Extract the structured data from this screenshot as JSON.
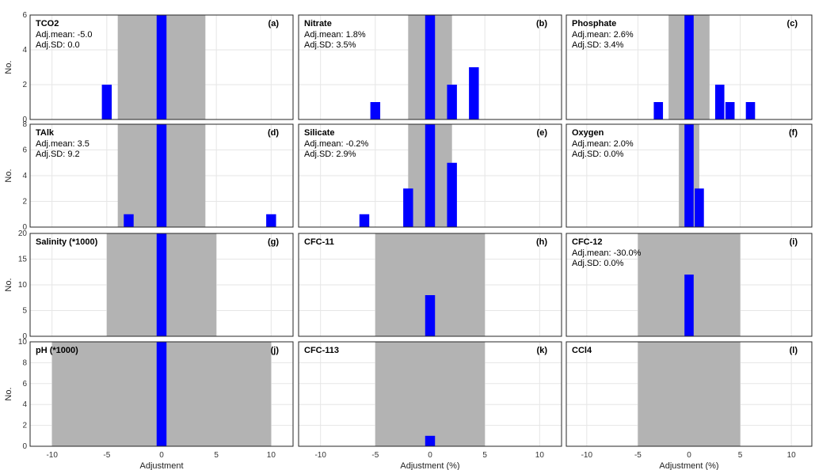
{
  "colors": {
    "bar": "#0000ff",
    "band": "#b3b3b3",
    "grid": "#e6e6e6",
    "frame": "#262626"
  },
  "chart_data": [
    {
      "type": "bar",
      "label": "(a)",
      "title": "TCO2",
      "stats": [
        "Adj.mean: -5.0",
        "Adj.SD: 0.0"
      ],
      "ylabel": "No.",
      "xlabel": "",
      "xlim": [
        -12,
        12
      ],
      "ylim": [
        0,
        6
      ],
      "yticks": [
        0,
        2,
        4,
        6
      ],
      "xticks": [],
      "band": [
        -4,
        4
      ],
      "bar_x": [
        -5,
        0
      ],
      "bar_y": [
        2,
        6
      ]
    },
    {
      "type": "bar",
      "label": "(b)",
      "title": "Nitrate",
      "stats": [
        "Adj.mean: 1.8%",
        "Adj.SD: 3.5%"
      ],
      "ylabel": "",
      "xlabel": "",
      "xlim": [
        -12,
        12
      ],
      "ylim": [
        0,
        6
      ],
      "yticks": [],
      "xticks": [],
      "band": [
        -2,
        2
      ],
      "bar_x": [
        -5,
        0,
        2,
        4
      ],
      "bar_y": [
        1,
        6,
        2,
        3
      ]
    },
    {
      "type": "bar",
      "label": "(c)",
      "title": "Phosphate",
      "stats": [
        "Adj.mean: 2.6%",
        "Adj.SD: 3.4%"
      ],
      "ylabel": "",
      "xlabel": "",
      "xlim": [
        -12,
        12
      ],
      "ylim": [
        0,
        6
      ],
      "yticks": [],
      "xticks": [],
      "band": [
        -2,
        2
      ],
      "bar_x": [
        -3,
        0,
        3,
        4,
        6
      ],
      "bar_y": [
        1,
        6,
        2,
        1,
        1
      ]
    },
    {
      "type": "bar",
      "label": "(d)",
      "title": "TAlk",
      "stats": [
        "Adj.mean: 3.5",
        "Adj.SD: 9.2"
      ],
      "ylabel": "No.",
      "xlabel": "",
      "xlim": [
        -12,
        12
      ],
      "ylim": [
        0,
        8
      ],
      "yticks": [
        0,
        2,
        4,
        6,
        8
      ],
      "xticks": [],
      "band": [
        -4,
        4
      ],
      "bar_x": [
        -3,
        0,
        10
      ],
      "bar_y": [
        1,
        8,
        1
      ]
    },
    {
      "type": "bar",
      "label": "(e)",
      "title": "Silicate",
      "stats": [
        "Adj.mean: -0.2%",
        "Adj.SD: 2.9%"
      ],
      "ylabel": "",
      "xlabel": "",
      "xlim": [
        -12,
        12
      ],
      "ylim": [
        0,
        8
      ],
      "yticks": [],
      "xticks": [],
      "band": [
        -2,
        2
      ],
      "bar_x": [
        -6,
        -2,
        0,
        2
      ],
      "bar_y": [
        1,
        3,
        8,
        5
      ]
    },
    {
      "type": "bar",
      "label": "(f)",
      "title": "Oxygen",
      "stats": [
        "Adj.mean: 2.0%",
        "Adj.SD: 0.0%"
      ],
      "ylabel": "",
      "xlabel": "",
      "xlim": [
        -12,
        12
      ],
      "ylim": [
        0,
        8
      ],
      "yticks": [],
      "xticks": [],
      "band": [
        -1,
        1
      ],
      "bar_x": [
        0,
        1
      ],
      "bar_y": [
        8,
        3
      ]
    },
    {
      "type": "bar",
      "label": "(g)",
      "title": "Salinity (*1000)",
      "stats": [],
      "ylabel": "No.",
      "xlabel": "",
      "xlim": [
        -12,
        12
      ],
      "ylim": [
        0,
        20
      ],
      "yticks": [
        0,
        5,
        10,
        15,
        20
      ],
      "xticks": [],
      "band": [
        -5,
        5
      ],
      "bar_x": [
        0
      ],
      "bar_y": [
        20
      ]
    },
    {
      "type": "bar",
      "label": "(h)",
      "title": "CFC-11",
      "stats": [],
      "ylabel": "",
      "xlabel": "",
      "xlim": [
        -12,
        12
      ],
      "ylim": [
        0,
        20
      ],
      "yticks": [],
      "xticks": [],
      "band": [
        -5,
        5
      ],
      "bar_x": [
        0
      ],
      "bar_y": [
        8
      ]
    },
    {
      "type": "bar",
      "label": "(i)",
      "title": "CFC-12",
      "stats": [
        "Adj.mean: -30.0%",
        "Adj.SD: 0.0%"
      ],
      "ylabel": "",
      "xlabel": "",
      "xlim": [
        -12,
        12
      ],
      "ylim": [
        0,
        20
      ],
      "yticks": [],
      "xticks": [],
      "band": [
        -5,
        5
      ],
      "bar_x": [
        0
      ],
      "bar_y": [
        12
      ]
    },
    {
      "type": "bar",
      "label": "(j)",
      "title": "pH (*1000)",
      "stats": [],
      "ylabel": "No.",
      "xlabel": "Adjustment",
      "xlim": [
        -12,
        12
      ],
      "ylim": [
        0,
        10
      ],
      "yticks": [
        0,
        2,
        4,
        6,
        8,
        10
      ],
      "xticks": [
        -10,
        -5,
        0,
        5,
        10
      ],
      "band": [
        -10,
        10
      ],
      "bar_x": [
        0
      ],
      "bar_y": [
        10
      ]
    },
    {
      "type": "bar",
      "label": "(k)",
      "title": "CFC-113",
      "stats": [],
      "ylabel": "",
      "xlabel": "Adjustment (%)",
      "xlim": [
        -12,
        12
      ],
      "ylim": [
        0,
        10
      ],
      "yticks": [],
      "xticks": [
        -10,
        -5,
        0,
        5,
        10
      ],
      "band": [
        -5,
        5
      ],
      "bar_x": [
        0
      ],
      "bar_y": [
        1
      ]
    },
    {
      "type": "bar",
      "label": "(l)",
      "title": "CCl4",
      "stats": [],
      "ylabel": "",
      "xlabel": "Adjustment (%)",
      "xlim": [
        -12,
        12
      ],
      "ylim": [
        0,
        10
      ],
      "yticks": [],
      "xticks": [
        -10,
        -5,
        0,
        5,
        10
      ],
      "band": [
        -5,
        5
      ],
      "bar_x": [],
      "bar_y": []
    }
  ]
}
